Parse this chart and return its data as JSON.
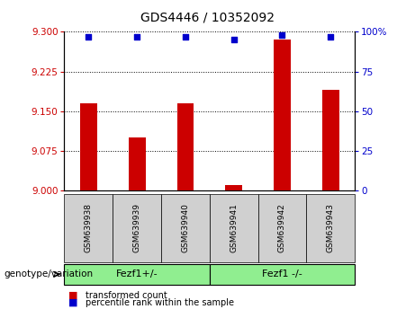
{
  "title": "GDS4446 / 10352092",
  "samples": [
    "GSM639938",
    "GSM639939",
    "GSM639940",
    "GSM639941",
    "GSM639942",
    "GSM639943"
  ],
  "red_values": [
    9.165,
    9.1,
    9.165,
    9.01,
    9.285,
    9.19
  ],
  "blue_values": [
    97,
    97,
    97,
    95,
    98,
    97
  ],
  "ylim_left": [
    9.0,
    9.3
  ],
  "ylim_right": [
    0,
    100
  ],
  "yticks_left": [
    9,
    9.075,
    9.15,
    9.225,
    9.3
  ],
  "yticks_right": [
    0,
    25,
    50,
    75,
    100
  ],
  "ytick_labels_right": [
    "0",
    "25",
    "50",
    "75",
    "100%"
  ],
  "red_color": "#cc0000",
  "blue_color": "#0000cc",
  "bar_width": 0.35,
  "group_label_left": "Fezf1+/-",
  "group_label_right": "Fezf1 -/-",
  "group_color": "#90ee90",
  "genotype_label": "genotype/variation",
  "legend_red": "transformed count",
  "legend_blue": "percentile rank within the sample",
  "left_tick_color": "#cc0000",
  "right_tick_color": "#0000cc",
  "sample_box_color": "#d0d0d0",
  "title_fontsize": 10,
  "tick_fontsize": 7.5,
  "sample_fontsize": 6.5,
  "group_fontsize": 8,
  "genotype_fontsize": 7.5,
  "legend_fontsize": 7
}
